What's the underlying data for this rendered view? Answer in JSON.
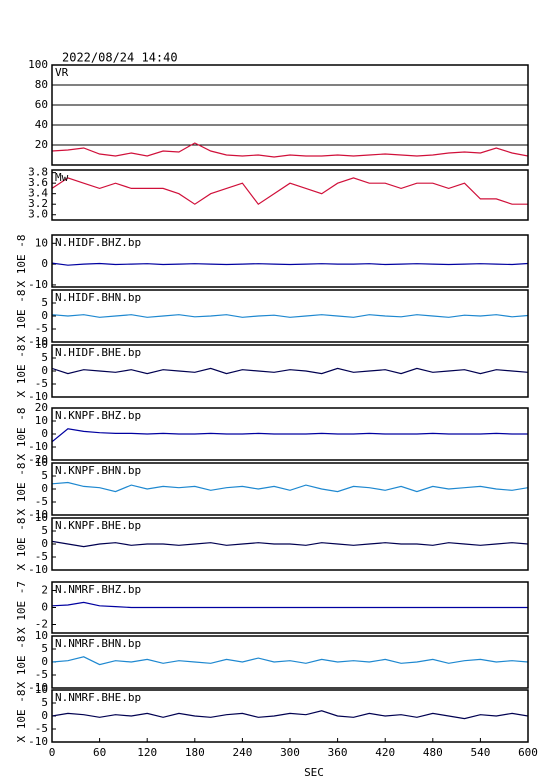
{
  "title": "2022/08/24  14:40",
  "chart_data": [
    {
      "type": "line",
      "label": "VR",
      "color": "#d0103a",
      "grid": true,
      "xlim": [
        0,
        600
      ],
      "ylim": [
        0,
        100
      ],
      "yticks": [
        20,
        40,
        60,
        80,
        100
      ],
      "x": [
        0,
        20,
        40,
        60,
        80,
        100,
        120,
        140,
        160,
        180,
        200,
        220,
        240,
        260,
        280,
        300,
        320,
        340,
        360,
        380,
        400,
        420,
        440,
        460,
        480,
        500,
        520,
        540,
        560,
        580,
        600
      ],
      "values": [
        14,
        15,
        17,
        11,
        9,
        12,
        9,
        14,
        13,
        22,
        14,
        10,
        9,
        10,
        8,
        10,
        9,
        9,
        10,
        9,
        10,
        11,
        10,
        9,
        10,
        12,
        13,
        12,
        17,
        12,
        9
      ]
    },
    {
      "type": "line",
      "label": "Mw",
      "color": "#d0103a",
      "grid": false,
      "xlim": [
        0,
        600
      ],
      "ylim": [
        2.9,
        3.85
      ],
      "yticks": [
        {
          "value": 3,
          "label": "3.0"
        },
        3.2,
        3.4,
        3.6,
        3.8
      ],
      "x": [
        0,
        20,
        40,
        60,
        80,
        100,
        120,
        140,
        160,
        180,
        200,
        220,
        240,
        260,
        280,
        300,
        320,
        340,
        360,
        380,
        400,
        420,
        440,
        460,
        480,
        500,
        520,
        540,
        560,
        580,
        600
      ],
      "values": [
        3.5,
        3.7,
        3.6,
        3.5,
        3.6,
        3.5,
        3.5,
        3.5,
        3.4,
        3.2,
        3.4,
        3.5,
        3.6,
        3.2,
        3.4,
        3.6,
        3.5,
        3.4,
        3.6,
        3.7,
        3.6,
        3.6,
        3.5,
        3.6,
        3.6,
        3.5,
        3.6,
        3.3,
        3.3,
        3.2,
        3.2
      ]
    },
    {
      "type": "line",
      "label": "N.HIDF.BHZ.bp",
      "ylabel": "X 10E -8",
      "color": "#0000a0",
      "grid": false,
      "xlim": [
        0,
        600
      ],
      "ylim": [
        -11,
        14
      ],
      "yticks": [
        -10,
        0,
        10
      ],
      "x": [
        0,
        20,
        40,
        60,
        80,
        100,
        120,
        140,
        160,
        180,
        200,
        220,
        240,
        260,
        280,
        300,
        320,
        340,
        360,
        380,
        400,
        420,
        440,
        460,
        480,
        500,
        520,
        540,
        560,
        580,
        600
      ],
      "values": [
        0.5,
        -0.5,
        0,
        0.3,
        -0.2,
        0,
        0.2,
        -0.2,
        0,
        0.2,
        0,
        -0.2,
        0,
        0.2,
        0,
        -0.2,
        0,
        0.2,
        0,
        0,
        0.2,
        -0.2,
        0,
        0.2,
        0,
        -0.2,
        0,
        0.2,
        0,
        -0.2,
        0.3
      ]
    },
    {
      "type": "line",
      "label": "N.HIDF.BHN.bp",
      "ylabel": "X 10E -8",
      "color": "#1e88d0",
      "grid": false,
      "xlim": [
        0,
        600
      ],
      "ylim": [
        -10,
        10
      ],
      "yticks": [
        -10,
        -5,
        0,
        5
      ],
      "x": [
        0,
        20,
        40,
        60,
        80,
        100,
        120,
        140,
        160,
        180,
        200,
        220,
        240,
        260,
        280,
        300,
        320,
        340,
        360,
        380,
        400,
        420,
        440,
        460,
        480,
        500,
        520,
        540,
        560,
        580,
        600
      ],
      "values": [
        0.5,
        0,
        0.5,
        -0.5,
        0,
        0.5,
        -0.5,
        0,
        0.5,
        -0.3,
        0,
        0.5,
        -0.5,
        0,
        0.3,
        -0.5,
        0,
        0.5,
        0,
        -0.5,
        0.5,
        0,
        -0.3,
        0.5,
        0,
        -0.5,
        0.3,
        0,
        0.5,
        -0.3,
        0.2
      ]
    },
    {
      "type": "line",
      "label": "N.HIDF.BHE.bp",
      "ylabel": "X 10E -8",
      "color": "#000050",
      "grid": false,
      "xlim": [
        0,
        600
      ],
      "ylim": [
        -10,
        10
      ],
      "yticks": [
        -10,
        -5,
        0,
        5,
        10
      ],
      "x": [
        0,
        20,
        40,
        60,
        80,
        100,
        120,
        140,
        160,
        180,
        200,
        220,
        240,
        260,
        280,
        300,
        320,
        340,
        360,
        380,
        400,
        420,
        440,
        460,
        480,
        500,
        520,
        540,
        560,
        580,
        600
      ],
      "values": [
        1,
        -1,
        0.5,
        0,
        -0.5,
        0.5,
        -1,
        0.5,
        0,
        -0.5,
        1,
        -1,
        0.5,
        0,
        -0.5,
        0.5,
        0,
        -1,
        1,
        -0.5,
        0,
        0.5,
        -1,
        1,
        -0.5,
        0,
        0.5,
        -1,
        0.5,
        0,
        -0.5
      ]
    },
    {
      "type": "line",
      "label": "N.KNPF.BHZ.bp",
      "ylabel": "X 10E -8",
      "color": "#0000a0",
      "grid": false,
      "xlim": [
        0,
        600
      ],
      "ylim": [
        -20,
        20
      ],
      "yticks": [
        -20,
        -10,
        0,
        10,
        20
      ],
      "x": [
        0,
        20,
        40,
        60,
        80,
        100,
        120,
        140,
        160,
        180,
        200,
        220,
        240,
        260,
        280,
        300,
        320,
        340,
        360,
        380,
        400,
        420,
        440,
        460,
        480,
        500,
        520,
        540,
        560,
        580,
        600
      ],
      "values": [
        -6,
        4,
        2,
        1,
        0.5,
        0.5,
        0,
        0.5,
        0,
        0,
        0.5,
        0,
        0,
        0.5,
        0,
        0,
        0,
        0.5,
        0,
        0,
        0.5,
        0,
        0,
        0,
        0.5,
        0,
        0,
        0,
        0.5,
        0,
        0
      ]
    },
    {
      "type": "line",
      "label": "N.KNPF.BHN.bp",
      "ylabel": "X 10E -8",
      "color": "#1e88d0",
      "grid": false,
      "xlim": [
        0,
        600
      ],
      "ylim": [
        -10,
        10
      ],
      "yticks": [
        -10,
        -5,
        0,
        5,
        10
      ],
      "x": [
        0,
        20,
        40,
        60,
        80,
        100,
        120,
        140,
        160,
        180,
        200,
        220,
        240,
        260,
        280,
        300,
        320,
        340,
        360,
        380,
        400,
        420,
        440,
        460,
        480,
        500,
        520,
        540,
        560,
        580,
        600
      ],
      "values": [
        2,
        2.5,
        1,
        0.5,
        -1,
        1.5,
        0,
        1,
        0.5,
        1,
        -0.5,
        0.5,
        1,
        0,
        1,
        -0.5,
        1.5,
        0,
        -1,
        1,
        0.5,
        -0.5,
        1,
        -1,
        1,
        0,
        0.5,
        1,
        0,
        -0.5,
        0.5
      ]
    },
    {
      "type": "line",
      "label": "N.KNPF.BHE.bp",
      "ylabel": "X 10E -8",
      "color": "#000050",
      "grid": false,
      "xlim": [
        0,
        600
      ],
      "ylim": [
        -10,
        10
      ],
      "yticks": [
        -10,
        -5,
        0,
        5,
        10
      ],
      "x": [
        0,
        20,
        40,
        60,
        80,
        100,
        120,
        140,
        160,
        180,
        200,
        220,
        240,
        260,
        280,
        300,
        320,
        340,
        360,
        380,
        400,
        420,
        440,
        460,
        480,
        500,
        520,
        540,
        560,
        580,
        600
      ],
      "values": [
        1,
        0,
        -1,
        0,
        0.5,
        -0.5,
        0,
        0,
        -0.5,
        0,
        0.5,
        -0.5,
        0,
        0.5,
        0,
        0,
        -0.5,
        0.5,
        0,
        -0.5,
        0,
        0.5,
        0,
        0,
        -0.5,
        0.5,
        0,
        -0.5,
        0,
        0.5,
        0
      ]
    },
    {
      "type": "line",
      "label": "N.NMRF.BHZ.bp",
      "ylabel": "X 10E -7",
      "color": "#0000a0",
      "grid": false,
      "xlim": [
        0,
        600
      ],
      "ylim": [
        -3,
        3
      ],
      "yticks": [
        -2,
        0,
        2
      ],
      "x": [
        0,
        20,
        40,
        60,
        80,
        100,
        120,
        140,
        160,
        180,
        200,
        220,
        240,
        260,
        280,
        300,
        320,
        340,
        360,
        380,
        400,
        420,
        440,
        460,
        480,
        500,
        520,
        540,
        560,
        580,
        600
      ],
      "values": [
        0.2,
        0.3,
        0.6,
        0.2,
        0.1,
        0,
        0,
        0,
        0,
        0,
        0,
        0,
        0,
        0,
        0,
        0,
        0,
        0,
        0,
        0,
        0,
        0,
        0,
        0,
        0,
        0,
        0,
        0,
        0,
        0,
        0
      ]
    },
    {
      "type": "line",
      "label": "N.NMRF.BHN.bp",
      "ylabel": "X 10E -8",
      "color": "#1e88d0",
      "grid": false,
      "xlim": [
        0,
        600
      ],
      "ylim": [
        -10,
        10
      ],
      "yticks": [
        -10,
        -5,
        0,
        5,
        10
      ],
      "x": [
        0,
        20,
        40,
        60,
        80,
        100,
        120,
        140,
        160,
        180,
        200,
        220,
        240,
        260,
        280,
        300,
        320,
        340,
        360,
        380,
        400,
        420,
        440,
        460,
        480,
        500,
        520,
        540,
        560,
        580,
        600
      ],
      "values": [
        0,
        0.5,
        2,
        -1,
        0.5,
        0,
        1,
        -0.5,
        0.5,
        0,
        -0.5,
        1,
        0,
        1.5,
        0,
        0.5,
        -0.5,
        1,
        0,
        0.5,
        0,
        1,
        -0.5,
        0,
        1,
        -0.5,
        0.5,
        1,
        0,
        0.5,
        0
      ]
    },
    {
      "type": "line",
      "label": "N.NMRF.BHE.bp",
      "ylabel": "X 10E -8",
      "color": "#000050",
      "grid": false,
      "xlim": [
        0,
        600
      ],
      "ylim": [
        -10,
        10
      ],
      "yticks": [
        -10,
        -5,
        0,
        5,
        10
      ],
      "xlabel": "SEC",
      "xticks": [
        0,
        60,
        120,
        180,
        240,
        300,
        360,
        420,
        480,
        540,
        600
      ],
      "x": [
        0,
        20,
        40,
        60,
        80,
        100,
        120,
        140,
        160,
        180,
        200,
        220,
        240,
        260,
        280,
        300,
        320,
        340,
        360,
        380,
        400,
        420,
        440,
        460,
        480,
        500,
        520,
        540,
        560,
        580,
        600
      ],
      "values": [
        0,
        1,
        0.5,
        -0.5,
        0.5,
        0,
        1,
        -0.5,
        1,
        0,
        -0.5,
        0.5,
        1,
        -0.5,
        0,
        1,
        0.5,
        2,
        0,
        -0.5,
        1,
        0,
        0.5,
        -0.5,
        1,
        0,
        -1,
        0.5,
        0,
        1,
        0
      ]
    }
  ]
}
